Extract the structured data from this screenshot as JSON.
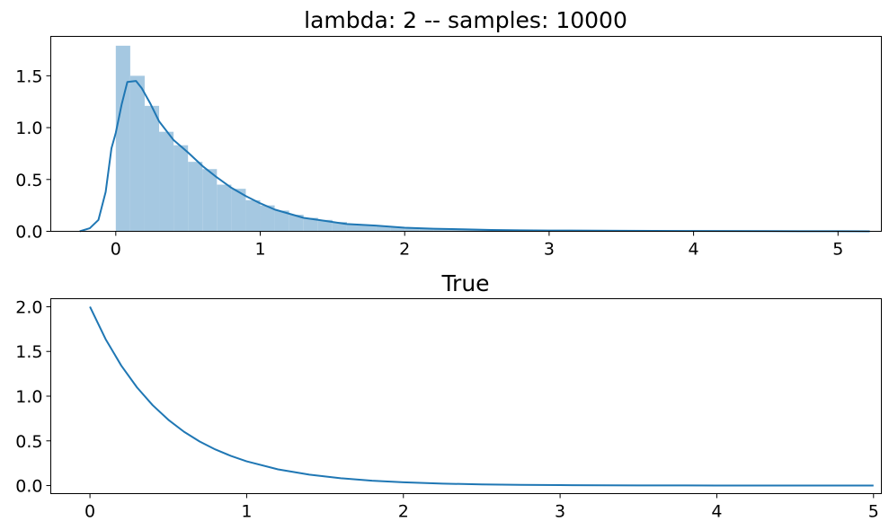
{
  "chart_data": [
    {
      "type": "bar",
      "title": "lambda: 2 -- samples: 10000",
      "xlabel": "",
      "ylabel": "",
      "xlim": [
        -0.45,
        5.3
      ],
      "ylim": [
        0,
        1.88
      ],
      "xticks": [
        0,
        1,
        2,
        3,
        4,
        5
      ],
      "xtick_labels": [
        "0",
        "1",
        "2",
        "3",
        "4",
        "5"
      ],
      "yticks": [
        0.0,
        0.5,
        1.0,
        1.5
      ],
      "ytick_labels": [
        "0.0",
        "0.5",
        "1.0",
        "1.5"
      ],
      "grid": false,
      "histogram": {
        "bin_width": 0.1,
        "bin_start": [
          0.0,
          0.1,
          0.2,
          0.3,
          0.4,
          0.5,
          0.6,
          0.7,
          0.8,
          0.9,
          1.0,
          1.1,
          1.2,
          1.3,
          1.4,
          1.5,
          1.6,
          1.7,
          1.8,
          1.9,
          2.0,
          2.1,
          2.2,
          2.3,
          2.4,
          2.5,
          2.6,
          2.7,
          2.8,
          2.9,
          3.0,
          3.1,
          3.2,
          3.3,
          3.4,
          3.5
        ],
        "density": [
          1.79,
          1.5,
          1.21,
          0.96,
          0.83,
          0.67,
          0.6,
          0.45,
          0.41,
          0.3,
          0.25,
          0.2,
          0.16,
          0.13,
          0.11,
          0.09,
          0.07,
          0.06,
          0.05,
          0.04,
          0.035,
          0.028,
          0.022,
          0.018,
          0.014,
          0.011,
          0.009,
          0.007,
          0.006,
          0.005,
          0.004,
          0.003,
          0.003,
          0.002,
          0.002,
          0.001
        ],
        "color": "#a5c8e1"
      },
      "kde": {
        "x": [
          -0.25,
          -0.18,
          -0.12,
          -0.07,
          -0.03,
          0.0,
          0.04,
          0.08,
          0.14,
          0.18,
          0.24,
          0.3,
          0.4,
          0.5,
          0.6,
          0.7,
          0.8,
          0.9,
          1.0,
          1.1,
          1.2,
          1.3,
          1.4,
          1.6,
          1.8,
          2.0,
          2.2,
          2.4,
          2.6,
          2.8,
          3.0,
          3.5,
          4.0,
          4.5,
          5.0,
          5.22
        ],
        "y": [
          0.0,
          0.03,
          0.11,
          0.38,
          0.8,
          0.95,
          1.22,
          1.44,
          1.45,
          1.38,
          1.23,
          1.06,
          0.88,
          0.76,
          0.63,
          0.52,
          0.42,
          0.34,
          0.27,
          0.21,
          0.17,
          0.13,
          0.11,
          0.07,
          0.055,
          0.035,
          0.025,
          0.02,
          0.013,
          0.01,
          0.008,
          0.005,
          0.003,
          0.002,
          0.001,
          0.0
        ],
        "color": "#1f77b4"
      }
    },
    {
      "type": "line",
      "title": "True",
      "xlabel": "",
      "ylabel": "",
      "xlim": [
        -0.25,
        5.05
      ],
      "ylim": [
        -0.09,
        2.09
      ],
      "xticks": [
        0,
        1,
        2,
        3,
        4,
        5
      ],
      "xtick_labels": [
        "0",
        "1",
        "2",
        "3",
        "4",
        "5"
      ],
      "yticks": [
        0.0,
        0.5,
        1.0,
        1.5,
        2.0
      ],
      "ytick_labels": [
        "0.0",
        "0.5",
        "1.0",
        "1.5",
        "2.0"
      ],
      "grid": false,
      "series": [
        {
          "x": [
            0.0,
            0.1,
            0.2,
            0.3,
            0.4,
            0.5,
            0.6,
            0.7,
            0.8,
            0.9,
            1.0,
            1.2,
            1.4,
            1.6,
            1.8,
            2.0,
            2.25,
            2.5,
            2.75,
            3.0,
            3.5,
            4.0,
            4.5,
            5.0
          ],
          "y": [
            2.0,
            1.637,
            1.341,
            1.098,
            0.899,
            0.736,
            0.602,
            0.493,
            0.404,
            0.331,
            0.271,
            0.181,
            0.122,
            0.082,
            0.055,
            0.037,
            0.022,
            0.013,
            0.008,
            0.005,
            0.002,
            0.001,
            0.0,
            0.0
          ],
          "color": "#1f77b4"
        }
      ]
    }
  ]
}
